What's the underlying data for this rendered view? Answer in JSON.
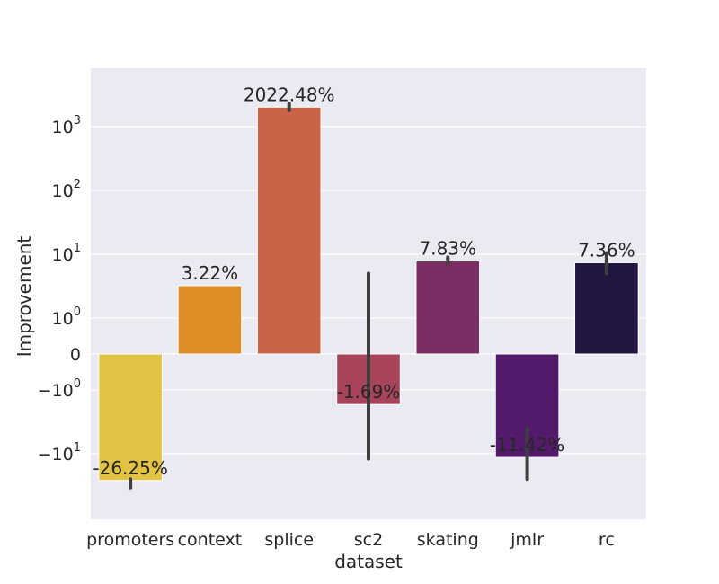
{
  "chart_data": {
    "type": "bar",
    "xlabel": "dataset",
    "ylabel": "Improvement",
    "y_scale": "symlog",
    "y_linthresh": 1,
    "grid": true,
    "categories": [
      "promoters",
      "context",
      "splice",
      "sc2",
      "skating",
      "jmlr",
      "rc"
    ],
    "values": [
      -26.25,
      3.22,
      2022.48,
      -1.69,
      7.83,
      -11.42,
      7.36
    ],
    "error_low": [
      -34,
      null,
      1800,
      -12,
      7.0,
      -25,
      5.0
    ],
    "error_high": [
      -25,
      null,
      2300,
      5,
      9.0,
      -4,
      10.5
    ],
    "bar_labels": [
      "-26.25%",
      "3.22%",
      "2022.48%",
      "-1.69%",
      "7.83%",
      "-11.42%",
      "7.36%"
    ],
    "y_ticks": [
      {
        "value": 1000,
        "base": "10",
        "exp": "3"
      },
      {
        "value": 100,
        "base": "10",
        "exp": "2"
      },
      {
        "value": 10,
        "base": "10",
        "exp": "1"
      },
      {
        "value": 1,
        "base": "10",
        "exp": "0"
      },
      {
        "value": 0,
        "base": "0",
        "exp": ""
      },
      {
        "value": -1,
        "base": "−10",
        "exp": "0"
      },
      {
        "value": -10,
        "base": "−10",
        "exp": "1"
      }
    ],
    "colors": [
      "#e3c344",
      "#de8d27",
      "#ca6449",
      "#a8445a",
      "#7a2d62",
      "#53196a",
      "#201641"
    ],
    "background": "#eaeaf2"
  }
}
